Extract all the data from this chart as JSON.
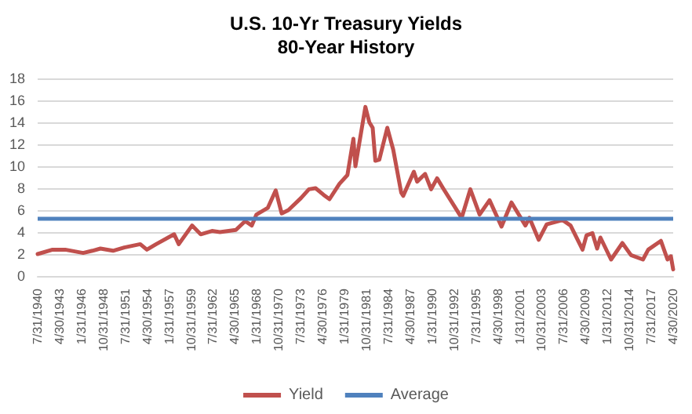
{
  "chart_data": {
    "type": "line",
    "title": "U.S. 10-Yr Treasury Yields",
    "subtitle": "80-Year History",
    "series": [
      {
        "name": "Yield",
        "color": "#c0504d",
        "x": [
          "1940-07-31",
          "1942-06",
          "1944-01",
          "1946-04",
          "1947-06",
          "1948-06",
          "1950-01",
          "1951-06",
          "1953-06",
          "1954-04",
          "1955-06",
          "1957-09",
          "1958-04",
          "1959-12",
          "1961-01",
          "1962-06",
          "1963-06",
          "1965-06",
          "1966-08",
          "1967-06",
          "1968-01",
          "1969-06",
          "1970-06",
          "1971-03",
          "1972-01",
          "1973-08",
          "1974-08",
          "1975-06",
          "1976-06",
          "1977-03",
          "1978-06",
          "1979-06",
          "1980-03",
          "1980-06",
          "1981-09",
          "1982-03",
          "1982-08",
          "1982-12",
          "1983-06",
          "1984-06",
          "1985-03",
          "1986-03",
          "1986-06",
          "1987-10",
          "1988-03",
          "1989-03",
          "1989-12",
          "1990-09",
          "1991-06",
          "1993-10",
          "1994-11",
          "1996-01",
          "1997-04",
          "1998-10",
          "2000-01",
          "2001-10",
          "2002-04",
          "2003-06",
          "2004-06",
          "2006-06",
          "2007-06",
          "2008-12",
          "2009-06",
          "2010-03",
          "2010-10",
          "2011-03",
          "2012-07",
          "2013-12",
          "2015-01",
          "2016-07",
          "2017-03",
          "2018-10",
          "2019-08",
          "2020-01",
          "2020-04-30"
        ],
        "values": [
          2.0,
          2.4,
          2.4,
          2.1,
          2.3,
          2.5,
          2.3,
          2.6,
          2.9,
          2.4,
          2.9,
          3.8,
          2.9,
          4.6,
          3.8,
          4.1,
          4.0,
          4.2,
          5.0,
          4.6,
          5.6,
          6.2,
          7.8,
          5.7,
          6.0,
          7.1,
          7.9,
          8.0,
          7.4,
          7.0,
          8.4,
          9.2,
          12.5,
          10.0,
          15.4,
          14.0,
          13.5,
          10.5,
          10.6,
          13.5,
          11.5,
          7.6,
          7.3,
          9.5,
          8.6,
          9.3,
          7.9,
          8.9,
          8.0,
          5.3,
          7.9,
          5.6,
          6.9,
          4.5,
          6.7,
          4.6,
          5.3,
          3.3,
          4.7,
          5.1,
          4.6,
          2.4,
          3.7,
          3.9,
          2.5,
          3.5,
          1.5,
          3.0,
          1.9,
          1.5,
          2.4,
          3.2,
          1.5,
          1.8,
          0.6
        ]
      }
    ],
    "ref_lines": [
      {
        "axis": "y",
        "value": 5.2,
        "label": "Average",
        "color": "#4f81bd"
      }
    ],
    "xlim": [
      "1940-07-31",
      "2020-04-30"
    ],
    "xticks": [
      {
        "value": "1940-07-31",
        "label": "7/31/1940"
      },
      {
        "value": "1943-04-30",
        "label": "4/30/1943"
      },
      {
        "value": "1946-01-31",
        "label": "1/31/1946"
      },
      {
        "value": "1948-10-31",
        "label": "10/31/1948"
      },
      {
        "value": "1951-07-31",
        "label": "7/31/1951"
      },
      {
        "value": "1954-04-30",
        "label": "4/30/1954"
      },
      {
        "value": "1957-01-31",
        "label": "1/31/1957"
      },
      {
        "value": "1959-10-31",
        "label": "10/31/1959"
      },
      {
        "value": "1962-07-31",
        "label": "7/31/1962"
      },
      {
        "value": "1965-04-30",
        "label": "4/30/1965"
      },
      {
        "value": "1968-01-31",
        "label": "1/31/1968"
      },
      {
        "value": "1970-10-31",
        "label": "10/31/1970"
      },
      {
        "value": "1973-07-31",
        "label": "7/31/1973"
      },
      {
        "value": "1976-04-30",
        "label": "4/30/1976"
      },
      {
        "value": "1979-01-31",
        "label": "1/31/1979"
      },
      {
        "value": "1981-10-31",
        "label": "10/31/1981"
      },
      {
        "value": "1984-07-31",
        "label": "7/31/1984"
      },
      {
        "value": "1987-04-30",
        "label": "4/30/1987"
      },
      {
        "value": "1990-01-31",
        "label": "1/31/1990"
      },
      {
        "value": "1992-10-31",
        "label": "10/31/1992"
      },
      {
        "value": "1995-07-31",
        "label": "7/31/1995"
      },
      {
        "value": "1998-04-30",
        "label": "4/30/1998"
      },
      {
        "value": "2001-01-31",
        "label": "1/31/2001"
      },
      {
        "value": "2003-10-31",
        "label": "10/31/2003"
      },
      {
        "value": "2006-07-31",
        "label": "7/31/2006"
      },
      {
        "value": "2009-04-30",
        "label": "4/30/2009"
      },
      {
        "value": "2012-01-31",
        "label": "1/31/2012"
      },
      {
        "value": "2014-10-31",
        "label": "10/31/2014"
      },
      {
        "value": "2017-07-31",
        "label": "7/31/2017"
      },
      {
        "value": "2020-04-30",
        "label": "4/30/2020"
      }
    ],
    "ylim": [
      0,
      18
    ],
    "yticks": [
      0,
      2,
      4,
      6,
      8,
      10,
      12,
      14,
      16,
      18
    ],
    "grid": "y",
    "legend": "bottom",
    "marker": "none",
    "line_style": "solid"
  }
}
